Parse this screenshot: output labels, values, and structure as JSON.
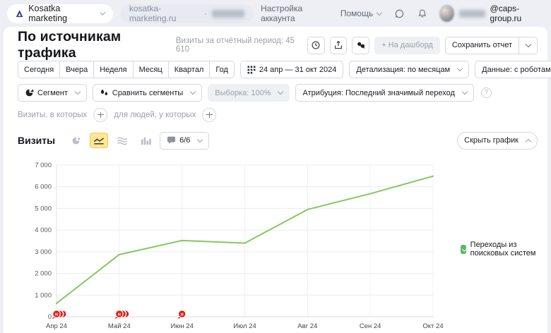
{
  "topbar": {
    "project_name": "Kosatka marketing",
    "site": "kosatka-marketing.ru",
    "separator": "·",
    "account_settings": "Настройка аккаунта",
    "help": "Помощь",
    "email_domain": "@caps-group.ru"
  },
  "header": {
    "title": "По источникам трафика",
    "visits_period_label": "Визиты за отчётный период:",
    "visits_total": "45 610",
    "to_dashboard": "+ На дашборд",
    "save_report": "Сохранить отчет"
  },
  "filters": {
    "quick_ranges": [
      "Сегодня",
      "Вчера",
      "Неделя",
      "Месяц",
      "Квартал",
      "Год"
    ],
    "date_range": "24 апр — 31 окт 2024",
    "detalization": "Детализация: по месяцам",
    "data_mode": "Данные: с роботами",
    "segment": "Сегмент",
    "compare_segments": "Сравнить сегменты",
    "sampling": "Выборка: 100%",
    "attribution": "Атрибуция: Последний значимый переход",
    "visits_condition": "Визиты, в которых",
    "people_condition": "для людей, у которых"
  },
  "chart_section": {
    "title": "Визиты",
    "metrics_count": "6/6",
    "hide_chart": "Скрыть график"
  },
  "glyphs": {
    "question": "?"
  },
  "colors": {
    "line_green": "#85c75e",
    "note_red": "#e01d1a",
    "legend_green": "#5cb85f",
    "selected_yellow": "#ffe793"
  },
  "chart_data": {
    "type": "line",
    "title": "Визиты",
    "categories": [
      "Апр 24",
      "Май 24",
      "Июн 24",
      "Июл 24",
      "Авг 24",
      "Сен 24",
      "Окт 24"
    ],
    "series": [
      {
        "name": "Переходы из поисковых систем",
        "color": "#85c75e",
        "values": [
          620,
          2870,
          3520,
          3400,
          4950,
          5680,
          6490
        ]
      }
    ],
    "xlabel": "",
    "ylabel": "",
    "ylim": [
      0,
      7000
    ],
    "ytick_step": 1000,
    "ytick_labels": [
      "7 000",
      "6 000",
      "5 000",
      "4 000",
      "3 000",
      "2 000",
      "1 000",
      "0"
    ],
    "grid": true,
    "legend_position": "right",
    "note_markers": [
      {
        "category": "Апр 24",
        "category_index": 0,
        "count": 3,
        "glyph": "н"
      },
      {
        "category": "Май 24",
        "category_index": 1,
        "count": 3,
        "glyph": "н"
      },
      {
        "category": "Июн 24",
        "category_index": 2,
        "count": 1,
        "glyph": "н"
      }
    ]
  }
}
